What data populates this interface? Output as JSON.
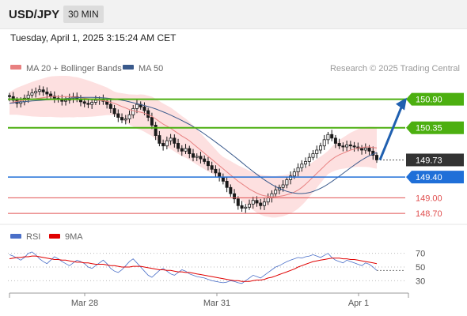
{
  "header": {
    "symbol": "USD/JPY",
    "interval": "30 MIN",
    "timestamp": "Tuesday, April 1, 2025 3:15:24 AM CET"
  },
  "legend": {
    "ma20_label": "MA 20 + Bollinger Bands",
    "ma50_label": "MA 50",
    "ma20_color": "#e88080",
    "ma50_color": "#3a5a8c",
    "copyright": "Research © 2025 Trading Central"
  },
  "rsi_legend": {
    "rsi_label": "RSI",
    "ma_label": "9MA",
    "rsi_color": "#4a6fc8",
    "ma_color": "#e00000"
  },
  "colors": {
    "up_candle": "#1a1a1a",
    "down_candle": "#1a1a1a",
    "resistance": "#4caf10",
    "pivot": "#1f6fd8",
    "support": "#e05050",
    "current": "#333333",
    "arrow": "#2060b0",
    "band_fill": "#fde0e0"
  },
  "chart_data": [
    {
      "type": "candlestick",
      "x_ticks": [
        "Mar 28",
        "Mar 31",
        "Apr 1"
      ],
      "levels": [
        {
          "label": "150.90",
          "value": 150.9,
          "kind": "resistance"
        },
        {
          "label": "150.35",
          "value": 150.35,
          "kind": "resistance"
        },
        {
          "label": "149.73",
          "value": 149.73,
          "kind": "current"
        },
        {
          "label": "149.40",
          "value": 149.4,
          "kind": "pivot"
        },
        {
          "label": "149.00",
          "value": 149.0,
          "kind": "support"
        },
        {
          "label": "148.70",
          "value": 148.7,
          "kind": "support"
        }
      ],
      "ylim": [
        148.55,
        151.35
      ],
      "projection": {
        "from": 149.73,
        "to": 150.9
      },
      "close": [
        150.95,
        150.88,
        150.82,
        150.85,
        150.92,
        150.98,
        151.02,
        151.05,
        151.08,
        151.04,
        151.0,
        150.96,
        150.92,
        150.9,
        150.86,
        150.88,
        150.92,
        150.95,
        150.9,
        150.85,
        150.82,
        150.8,
        150.84,
        150.88,
        150.9,
        150.86,
        150.8,
        150.72,
        150.62,
        150.55,
        150.5,
        150.52,
        150.6,
        150.72,
        150.8,
        150.75,
        150.68,
        150.55,
        150.4,
        150.2,
        150.05,
        150.0,
        150.1,
        150.15,
        150.05,
        149.95,
        149.9,
        149.95,
        149.85,
        149.78,
        149.8,
        149.75,
        149.7,
        149.62,
        149.55,
        149.48,
        149.4,
        149.32,
        149.2,
        149.08,
        148.98,
        148.85,
        148.8,
        148.82,
        148.88,
        148.95,
        148.9,
        148.85,
        148.92,
        149.0,
        149.08,
        149.15,
        149.2,
        149.25,
        149.35,
        149.42,
        149.5,
        149.58,
        149.65,
        149.7,
        149.78,
        149.85,
        149.92,
        150.0,
        150.12,
        150.22,
        150.15,
        150.05,
        150.0,
        149.98,
        150.02,
        150.0,
        149.98,
        149.95,
        149.92,
        149.96,
        149.9,
        149.82,
        149.73
      ],
      "ma20": [
        150.82,
        150.84,
        150.86,
        150.87,
        150.88,
        150.89,
        150.9,
        150.91,
        150.92,
        150.93,
        150.94,
        150.95,
        150.95,
        150.95,
        150.95,
        150.95,
        150.95,
        150.94,
        150.94,
        150.93,
        150.92,
        150.91,
        150.9,
        150.89,
        150.88,
        150.87,
        150.86,
        150.84,
        150.82,
        150.79,
        150.76,
        150.73,
        150.7,
        150.68,
        150.66,
        150.65,
        150.63,
        150.6,
        150.57,
        150.52,
        150.47,
        150.42,
        150.38,
        150.34,
        150.29,
        150.24,
        150.19,
        150.15,
        150.1,
        150.04,
        149.98,
        149.92,
        149.86,
        149.8,
        149.74,
        149.68,
        149.62,
        149.56,
        149.5,
        149.44,
        149.38,
        149.32,
        149.27,
        149.22,
        149.17,
        149.13,
        149.09,
        149.06,
        149.04,
        149.03,
        149.02,
        149.02,
        149.03,
        149.04,
        149.06,
        149.08,
        149.11,
        149.15,
        149.2,
        149.26,
        149.33,
        149.4,
        149.47,
        149.54,
        149.61,
        149.68,
        149.74,
        149.79,
        149.83,
        149.86,
        149.89,
        149.92,
        149.94,
        149.96,
        149.97,
        149.98,
        149.98,
        149.97,
        149.96
      ]
    },
    {
      "type": "line",
      "title": "RSI",
      "y_ticks": [
        70,
        50,
        30
      ],
      "ylim": [
        20,
        80
      ],
      "rsi": [
        68,
        66,
        63,
        60,
        64,
        70,
        72,
        68,
        62,
        58,
        55,
        60,
        65,
        62,
        58,
        55,
        52,
        56,
        60,
        58,
        55,
        50,
        48,
        52,
        56,
        60,
        55,
        48,
        44,
        42,
        46,
        52,
        58,
        62,
        56,
        50,
        44,
        38,
        35,
        40,
        45,
        48,
        44,
        40,
        38,
        42,
        46,
        44,
        40,
        38,
        36,
        35,
        34,
        32,
        30,
        29,
        28,
        27,
        28,
        30,
        29,
        27,
        26,
        30,
        34,
        38,
        36,
        34,
        38,
        42,
        46,
        50,
        52,
        55,
        58,
        60,
        62,
        64,
        63,
        65,
        66,
        68,
        66,
        64,
        67,
        70,
        64,
        60,
        58,
        56,
        60,
        58,
        56,
        54,
        52,
        56,
        54,
        50,
        45
      ],
      "ma9": [
        62,
        63,
        64,
        64,
        65,
        65,
        66,
        66,
        65,
        64,
        63,
        62,
        61,
        61,
        60,
        60,
        59,
        58,
        57,
        57,
        56,
        56,
        55,
        54,
        54,
        54,
        53,
        52,
        52,
        51,
        50,
        50,
        50,
        51,
        51,
        51,
        50,
        49,
        48,
        47,
        46,
        46,
        45,
        45,
        44,
        43,
        43,
        42,
        42,
        41,
        40,
        39,
        38,
        37,
        36,
        35,
        34,
        33,
        32,
        31,
        30,
        30,
        29,
        29,
        29,
        30,
        31,
        31,
        32,
        34,
        35,
        37,
        39,
        41,
        43,
        45,
        47,
        50,
        52,
        54,
        56,
        58,
        59,
        60,
        61,
        62,
        63,
        63,
        63,
        62,
        62,
        61,
        61,
        60,
        59,
        58,
        57,
        56,
        55
      ]
    }
  ]
}
